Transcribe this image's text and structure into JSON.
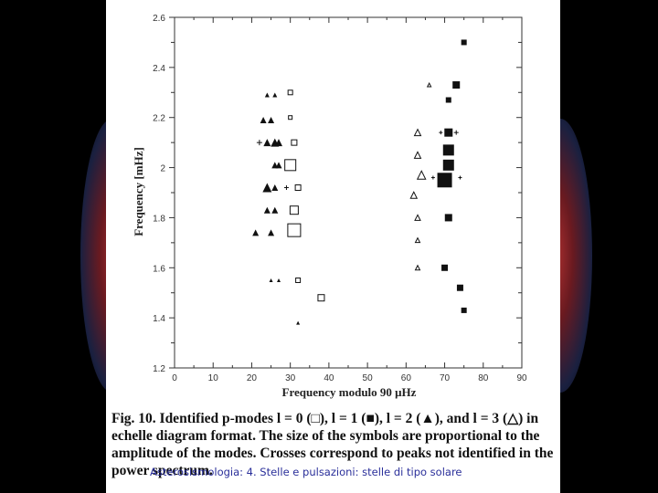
{
  "chart_data": {
    "type": "scatter",
    "xlabel": "Frequency modulo 90 μHz",
    "ylabel": "Frequency [mHz]",
    "xlim": [
      0,
      90
    ],
    "ylim": [
      1.2,
      2.6
    ],
    "x_ticks": [
      0,
      10,
      20,
      30,
      40,
      50,
      60,
      70,
      80,
      90
    ],
    "y_tick_labels": [
      {
        "value": 2.6,
        "label": "2.6"
      },
      {
        "value": 2.4,
        "label": "2.4"
      },
      {
        "value": 2.2,
        "label": "2.2"
      },
      {
        "value": 2.0,
        "label": "2"
      },
      {
        "value": 1.8,
        "label": "1.8"
      },
      {
        "value": 1.6,
        "label": "1.6"
      },
      {
        "value": 1.4,
        "label": "1.4"
      },
      {
        "value": 1.2,
        "label": "1.2"
      }
    ],
    "series": [
      {
        "name": "l = 0",
        "marker": "open-square",
        "points": [
          {
            "x": 30,
            "y": 2.3,
            "s": 5
          },
          {
            "x": 30,
            "y": 2.2,
            "s": 4
          },
          {
            "x": 31,
            "y": 2.1,
            "s": 6
          },
          {
            "x": 30,
            "y": 2.01,
            "s": 12
          },
          {
            "x": 32,
            "y": 1.92,
            "s": 6
          },
          {
            "x": 31,
            "y": 1.83,
            "s": 9
          },
          {
            "x": 31,
            "y": 1.75,
            "s": 14
          },
          {
            "x": 32,
            "y": 1.55,
            "s": 5
          },
          {
            "x": 38,
            "y": 1.48,
            "s": 7
          }
        ]
      },
      {
        "name": "l = 1",
        "marker": "filled-square",
        "points": [
          {
            "x": 75,
            "y": 2.5,
            "s": 6
          },
          {
            "x": 73,
            "y": 2.33,
            "s": 8
          },
          {
            "x": 71,
            "y": 2.27,
            "s": 6
          },
          {
            "x": 71,
            "y": 2.14,
            "s": 9
          },
          {
            "x": 71,
            "y": 2.07,
            "s": 12
          },
          {
            "x": 71,
            "y": 2.01,
            "s": 12
          },
          {
            "x": 70,
            "y": 1.95,
            "s": 16
          },
          {
            "x": 71,
            "y": 1.8,
            "s": 8
          },
          {
            "x": 70,
            "y": 1.6,
            "s": 7
          },
          {
            "x": 74,
            "y": 1.52,
            "s": 7
          },
          {
            "x": 75,
            "y": 1.43,
            "s": 6
          }
        ]
      },
      {
        "name": "l = 2",
        "marker": "filled-triangle",
        "points": [
          {
            "x": 24,
            "y": 2.29,
            "s": 5
          },
          {
            "x": 26,
            "y": 2.29,
            "s": 5
          },
          {
            "x": 23,
            "y": 2.19,
            "s": 7
          },
          {
            "x": 25,
            "y": 2.19,
            "s": 7
          },
          {
            "x": 24,
            "y": 2.1,
            "s": 8
          },
          {
            "x": 26,
            "y": 2.1,
            "s": 9
          },
          {
            "x": 27,
            "y": 2.1,
            "s": 8
          },
          {
            "x": 26,
            "y": 2.01,
            "s": 7
          },
          {
            "x": 27,
            "y": 2.01,
            "s": 7
          },
          {
            "x": 24,
            "y": 1.92,
            "s": 10
          },
          {
            "x": 26,
            "y": 1.92,
            "s": 7
          },
          {
            "x": 24,
            "y": 1.83,
            "s": 7
          },
          {
            "x": 26,
            "y": 1.83,
            "s": 7
          },
          {
            "x": 21,
            "y": 1.74,
            "s": 7
          },
          {
            "x": 25,
            "y": 1.74,
            "s": 7
          },
          {
            "x": 25,
            "y": 1.55,
            "s": 4
          },
          {
            "x": 27,
            "y": 1.55,
            "s": 4
          },
          {
            "x": 32,
            "y": 1.38,
            "s": 4
          }
        ]
      },
      {
        "name": "l = 3",
        "marker": "open-triangle",
        "points": [
          {
            "x": 66,
            "y": 2.33,
            "s": 4
          },
          {
            "x": 63,
            "y": 2.14,
            "s": 7
          },
          {
            "x": 63,
            "y": 2.05,
            "s": 7
          },
          {
            "x": 64,
            "y": 1.97,
            "s": 9
          },
          {
            "x": 62,
            "y": 1.89,
            "s": 7
          },
          {
            "x": 63,
            "y": 1.8,
            "s": 6
          },
          {
            "x": 63,
            "y": 1.71,
            "s": 5
          },
          {
            "x": 63,
            "y": 1.6,
            "s": 5
          }
        ]
      },
      {
        "name": "crosses",
        "marker": "cross",
        "points": [
          {
            "x": 22,
            "y": 2.1,
            "s": 6
          },
          {
            "x": 29,
            "y": 1.92,
            "s": 5
          },
          {
            "x": 73,
            "y": 2.14,
            "s": 5
          },
          {
            "x": 69,
            "y": 2.14,
            "s": 4
          },
          {
            "x": 74,
            "y": 1.96,
            "s": 4
          },
          {
            "x": 67,
            "y": 1.96,
            "s": 4
          }
        ]
      }
    ]
  },
  "caption": {
    "fig": "Fig. 10.",
    "text": " Identified p-modes l = 0 (□), l = 1 (■), l = 2 (▲), and l = 3 (△) in echelle diagram format. The size of the symbols are proportional to the amplitude of the modes. Crosses correspond to peaks not identified in the power spectrum."
  },
  "footer": "Asterosismologia: 4. Stelle e pulsazioni: stelle di tipo solare"
}
